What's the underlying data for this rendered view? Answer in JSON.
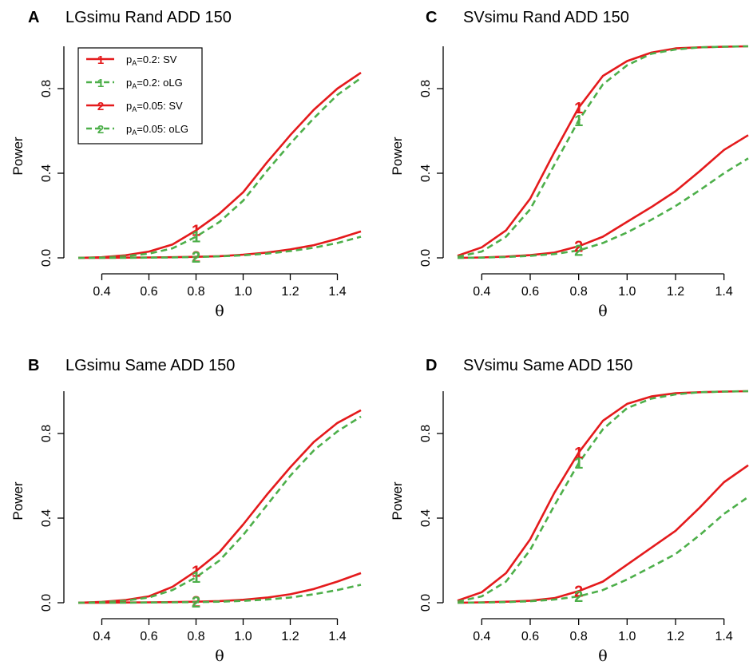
{
  "chart_data": [
    {
      "type": "line",
      "letter": "A",
      "title": "LGsimu Rand ADD 150",
      "xlabel": "θ",
      "ylabel": "Power",
      "xlim": [
        0.3,
        1.5
      ],
      "ylim": [
        0,
        1
      ],
      "x_ticks": [
        "0.4",
        "0.6",
        "0.8",
        "1.0",
        "1.2",
        "1.4"
      ],
      "y_ticks": [
        "0.0",
        "0.4",
        "0.8"
      ],
      "x": [
        0.3,
        0.4,
        0.5,
        0.6,
        0.7,
        0.8,
        0.9,
        1.0,
        1.1,
        1.2,
        1.3,
        1.4,
        1.5
      ],
      "series": [
        {
          "name": "pA=0.2: SV",
          "marker": "1",
          "color": "#e41a1c",
          "dashed": false,
          "values": [
            0.0,
            0.003,
            0.012,
            0.03,
            0.063,
            0.13,
            0.21,
            0.31,
            0.45,
            0.58,
            0.7,
            0.8,
            0.875
          ]
        },
        {
          "name": "pA=0.2: oLG",
          "marker": "1",
          "color": "#4daf4a",
          "dashed": true,
          "values": [
            0.0,
            0.002,
            0.008,
            0.02,
            0.045,
            0.1,
            0.17,
            0.27,
            0.41,
            0.54,
            0.66,
            0.77,
            0.85
          ]
        },
        {
          "name": "pA=0.05: SV",
          "marker": "2",
          "color": "#e41a1c",
          "dashed": false,
          "values": [
            0.0,
            0.0,
            0.001,
            0.002,
            0.003,
            0.005,
            0.008,
            0.015,
            0.025,
            0.04,
            0.06,
            0.09,
            0.125
          ]
        },
        {
          "name": "pA=0.05: oLG",
          "marker": "2",
          "color": "#4daf4a",
          "dashed": true,
          "values": [
            0.0,
            0.0,
            0.0,
            0.001,
            0.002,
            0.004,
            0.007,
            0.012,
            0.02,
            0.032,
            0.048,
            0.07,
            0.1
          ]
        }
      ],
      "legend": {
        "show": true,
        "position": "top-left",
        "entries": [
          {
            "prefix": "p",
            "sub": "A",
            "suffix": "=0.2: SV",
            "marker": "1",
            "color": "#e41a1c",
            "dashed": false
          },
          {
            "prefix": "p",
            "sub": "A",
            "suffix": "=0.2: oLG",
            "marker": "1",
            "color": "#4daf4a",
            "dashed": true
          },
          {
            "prefix": "p",
            "sub": "A",
            "suffix": "=0.05: SV",
            "marker": "2",
            "color": "#e41a1c",
            "dashed": false
          },
          {
            "prefix": "p",
            "sub": "A",
            "suffix": "=0.05: oLG",
            "marker": "2",
            "color": "#4daf4a",
            "dashed": true
          }
        ]
      }
    },
    {
      "type": "line",
      "letter": "C",
      "title": "SVsimu Rand ADD 150",
      "xlabel": "θ",
      "ylabel": "Power",
      "xlim": [
        0.3,
        1.5
      ],
      "ylim": [
        0,
        1
      ],
      "x_ticks": [
        "0.4",
        "0.6",
        "0.8",
        "1.0",
        "1.2",
        "1.4"
      ],
      "y_ticks": [
        "0.0",
        "0.4",
        "0.8"
      ],
      "x": [
        0.3,
        0.4,
        0.5,
        0.6,
        0.7,
        0.8,
        0.9,
        1.0,
        1.1,
        1.2,
        1.3,
        1.4,
        1.5
      ],
      "series": [
        {
          "name": "pA=0.2: SV",
          "marker": "1",
          "color": "#e41a1c",
          "dashed": false,
          "values": [
            0.01,
            0.05,
            0.13,
            0.28,
            0.5,
            0.71,
            0.86,
            0.93,
            0.97,
            0.99,
            0.995,
            0.998,
            1.0
          ]
        },
        {
          "name": "pA=0.2: oLG",
          "marker": "1",
          "color": "#4daf4a",
          "dashed": true,
          "values": [
            0.005,
            0.03,
            0.1,
            0.23,
            0.44,
            0.65,
            0.82,
            0.91,
            0.965,
            0.985,
            0.995,
            0.998,
            1.0
          ]
        },
        {
          "name": "pA=0.05: SV",
          "marker": "2",
          "color": "#e41a1c",
          "dashed": false,
          "values": [
            0.0,
            0.002,
            0.006,
            0.013,
            0.025,
            0.055,
            0.1,
            0.17,
            0.24,
            0.315,
            0.41,
            0.51,
            0.58
          ]
        },
        {
          "name": "pA=0.05: oLG",
          "marker": "2",
          "color": "#4daf4a",
          "dashed": true,
          "values": [
            0.0,
            0.001,
            0.004,
            0.01,
            0.018,
            0.035,
            0.07,
            0.12,
            0.18,
            0.245,
            0.32,
            0.4,
            0.47
          ]
        }
      ],
      "legend": {
        "show": false
      }
    },
    {
      "type": "line",
      "letter": "B",
      "title": "LGsimu Same ADD 150",
      "xlabel": "θ",
      "ylabel": "Power",
      "xlim": [
        0.3,
        1.5
      ],
      "ylim": [
        0,
        1
      ],
      "x_ticks": [
        "0.4",
        "0.6",
        "0.8",
        "1.0",
        "1.2",
        "1.4"
      ],
      "y_ticks": [
        "0.0",
        "0.4",
        "0.8"
      ],
      "x": [
        0.3,
        0.4,
        0.5,
        0.6,
        0.7,
        0.8,
        0.9,
        1.0,
        1.1,
        1.2,
        1.3,
        1.4,
        1.5
      ],
      "series": [
        {
          "name": "pA=0.2: SV",
          "marker": "1",
          "color": "#e41a1c",
          "dashed": false,
          "values": [
            0.0,
            0.004,
            0.013,
            0.03,
            0.075,
            0.15,
            0.24,
            0.37,
            0.51,
            0.64,
            0.76,
            0.85,
            0.91
          ]
        },
        {
          "name": "pA=0.2: oLG",
          "marker": "1",
          "color": "#4daf4a",
          "dashed": true,
          "values": [
            0.0,
            0.003,
            0.01,
            0.025,
            0.06,
            0.12,
            0.2,
            0.32,
            0.46,
            0.6,
            0.72,
            0.81,
            0.88
          ]
        },
        {
          "name": "pA=0.05: SV",
          "marker": "2",
          "color": "#e41a1c",
          "dashed": false,
          "values": [
            0.0,
            0.0,
            0.001,
            0.002,
            0.003,
            0.005,
            0.008,
            0.014,
            0.024,
            0.04,
            0.065,
            0.1,
            0.14
          ]
        },
        {
          "name": "pA=0.05: oLG",
          "marker": "2",
          "color": "#4daf4a",
          "dashed": true,
          "values": [
            0.0,
            0.0,
            0.0,
            0.001,
            0.002,
            0.003,
            0.005,
            0.009,
            0.015,
            0.025,
            0.04,
            0.06,
            0.085
          ]
        }
      ],
      "legend": {
        "show": false
      }
    },
    {
      "type": "line",
      "letter": "D",
      "title": "SVsimu Same ADD 150",
      "xlabel": "θ",
      "ylabel": "Power",
      "xlim": [
        0.3,
        1.5
      ],
      "ylim": [
        0,
        1
      ],
      "x_ticks": [
        "0.4",
        "0.6",
        "0.8",
        "1.0",
        "1.2",
        "1.4"
      ],
      "y_ticks": [
        "0.0",
        "0.4",
        "0.8"
      ],
      "x": [
        0.3,
        0.4,
        0.5,
        0.6,
        0.7,
        0.8,
        0.9,
        1.0,
        1.1,
        1.2,
        1.3,
        1.4,
        1.5
      ],
      "series": [
        {
          "name": "pA=0.2: SV",
          "marker": "1",
          "color": "#e41a1c",
          "dashed": false,
          "values": [
            0.01,
            0.05,
            0.14,
            0.3,
            0.52,
            0.71,
            0.86,
            0.94,
            0.975,
            0.99,
            0.995,
            0.998,
            1.0
          ]
        },
        {
          "name": "pA=0.2: oLG",
          "marker": "1",
          "color": "#4daf4a",
          "dashed": true,
          "values": [
            0.005,
            0.03,
            0.1,
            0.25,
            0.46,
            0.66,
            0.82,
            0.92,
            0.965,
            0.985,
            0.995,
            0.998,
            1.0
          ]
        },
        {
          "name": "pA=0.05: SV",
          "marker": "2",
          "color": "#e41a1c",
          "dashed": false,
          "values": [
            0.0,
            0.002,
            0.005,
            0.01,
            0.022,
            0.055,
            0.1,
            0.18,
            0.26,
            0.34,
            0.45,
            0.57,
            0.65
          ]
        },
        {
          "name": "pA=0.05: oLG",
          "marker": "2",
          "color": "#4daf4a",
          "dashed": true,
          "values": [
            0.0,
            0.001,
            0.003,
            0.007,
            0.015,
            0.03,
            0.06,
            0.11,
            0.17,
            0.23,
            0.32,
            0.42,
            0.5
          ]
        }
      ],
      "legend": {
        "show": false
      }
    }
  ]
}
